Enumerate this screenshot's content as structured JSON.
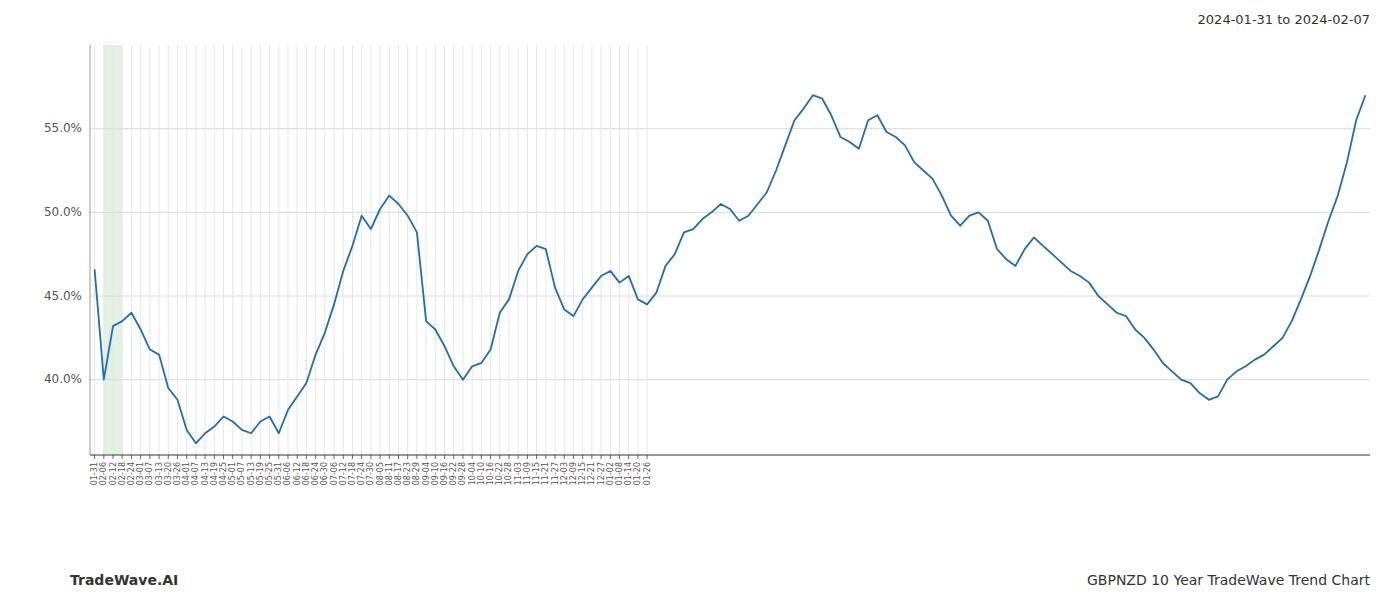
{
  "chart_data": {
    "type": "line",
    "title": "GBPNZD 10 Year TradeWave Trend Chart",
    "subtitle": "2024-01-31 to 2024-02-07",
    "annotations": [
      "TradeWave.AI"
    ],
    "color": "#1f6eb5",
    "grid": true,
    "highlight": {
      "start": "02-06",
      "end": "02-18",
      "color": "#d0e8d0"
    },
    "ylim": [
      0.355,
      0.6
    ],
    "yticks": [
      {
        "value": 0.4,
        "label": "40.0%"
      },
      {
        "value": 0.45,
        "label": "45.0%"
      },
      {
        "value": 0.5,
        "label": "50.0%"
      },
      {
        "value": 0.55,
        "label": "55.0%"
      }
    ],
    "categories": [
      "01-31",
      "02-06",
      "02-12",
      "02-18",
      "02-24",
      "03-01",
      "03-07",
      "03-13",
      "03-20",
      "03-26",
      "04-01",
      "04-07",
      "04-13",
      "04-19",
      "04-25",
      "05-01",
      "05-07",
      "05-13",
      "05-19",
      "05-25",
      "05-31",
      "06-06",
      "06-12",
      "06-18",
      "06-24",
      "06-30",
      "07-06",
      "07-12",
      "07-18",
      "07-24",
      "07-30",
      "08-05",
      "08-11",
      "08-17",
      "08-23",
      "08-29",
      "09-04",
      "09-10",
      "09-16",
      "09-22",
      "09-28",
      "10-04",
      "10-10",
      "10-16",
      "10-22",
      "10-28",
      "11-03",
      "11-09",
      "11-15",
      "11-21",
      "11-27",
      "12-03",
      "12-09",
      "12-15",
      "12-21",
      "12-27",
      "01-02",
      "01-08",
      "01-14",
      "01-20",
      "01-26",
      null,
      null,
      null,
      null,
      null,
      null,
      null,
      null,
      null,
      null,
      null,
      null,
      null,
      null,
      null,
      null,
      null,
      null,
      null,
      null,
      null,
      null,
      null,
      null,
      null,
      null,
      null,
      null,
      null,
      null,
      null,
      null,
      null,
      null,
      null,
      null,
      null,
      null,
      null,
      null,
      null,
      null,
      null,
      null,
      null,
      null,
      null,
      null,
      null,
      null,
      null,
      null,
      null,
      null,
      null,
      null,
      null,
      null,
      null,
      null,
      null,
      null,
      null,
      null,
      null,
      null,
      null,
      null,
      null,
      null,
      null,
      null,
      null,
      null,
      null,
      null,
      null,
      null
    ],
    "values": [
      0.466,
      0.4,
      0.432,
      0.435,
      0.44,
      0.43,
      0.418,
      0.415,
      0.395,
      0.388,
      0.37,
      0.362,
      0.368,
      0.372,
      0.378,
      0.375,
      0.37,
      0.368,
      0.375,
      0.378,
      0.368,
      0.382,
      0.39,
      0.398,
      0.415,
      0.428,
      0.445,
      0.465,
      0.48,
      0.498,
      0.49,
      0.502,
      0.51,
      0.505,
      0.498,
      0.488,
      0.435,
      0.43,
      0.42,
      0.408,
      0.4,
      0.408,
      0.41,
      0.418,
      0.44,
      0.448,
      0.465,
      0.475,
      0.48,
      0.478,
      0.455,
      0.442,
      0.438,
      0.448,
      0.455,
      0.462,
      0.465,
      0.458,
      0.462,
      0.448,
      0.445,
      0.452,
      0.468,
      0.475,
      0.488,
      0.49,
      0.496,
      0.5,
      0.505,
      0.502,
      0.495,
      0.498,
      0.505,
      0.512,
      0.525,
      0.54,
      0.555,
      0.562,
      0.57,
      0.568,
      0.558,
      0.545,
      0.542,
      0.538,
      0.555,
      0.558,
      0.548,
      0.545,
      0.54,
      0.53,
      0.525,
      0.52,
      0.51,
      0.498,
      0.492,
      0.498,
      0.5,
      0.495,
      0.478,
      0.472,
      0.468,
      0.478,
      0.485,
      0.48,
      0.475,
      0.47,
      0.465,
      0.462,
      0.458,
      0.45,
      0.445,
      0.44,
      0.438,
      0.43,
      0.425,
      0.418,
      0.41,
      0.405,
      0.4,
      0.398,
      0.392,
      0.388,
      0.39,
      0.4,
      0.405,
      0.408,
      0.412,
      0.415,
      0.42,
      0.425,
      0.435,
      0.448,
      0.462,
      0.478,
      0.495,
      0.51,
      0.53,
      0.555,
      0.57
    ]
  }
}
